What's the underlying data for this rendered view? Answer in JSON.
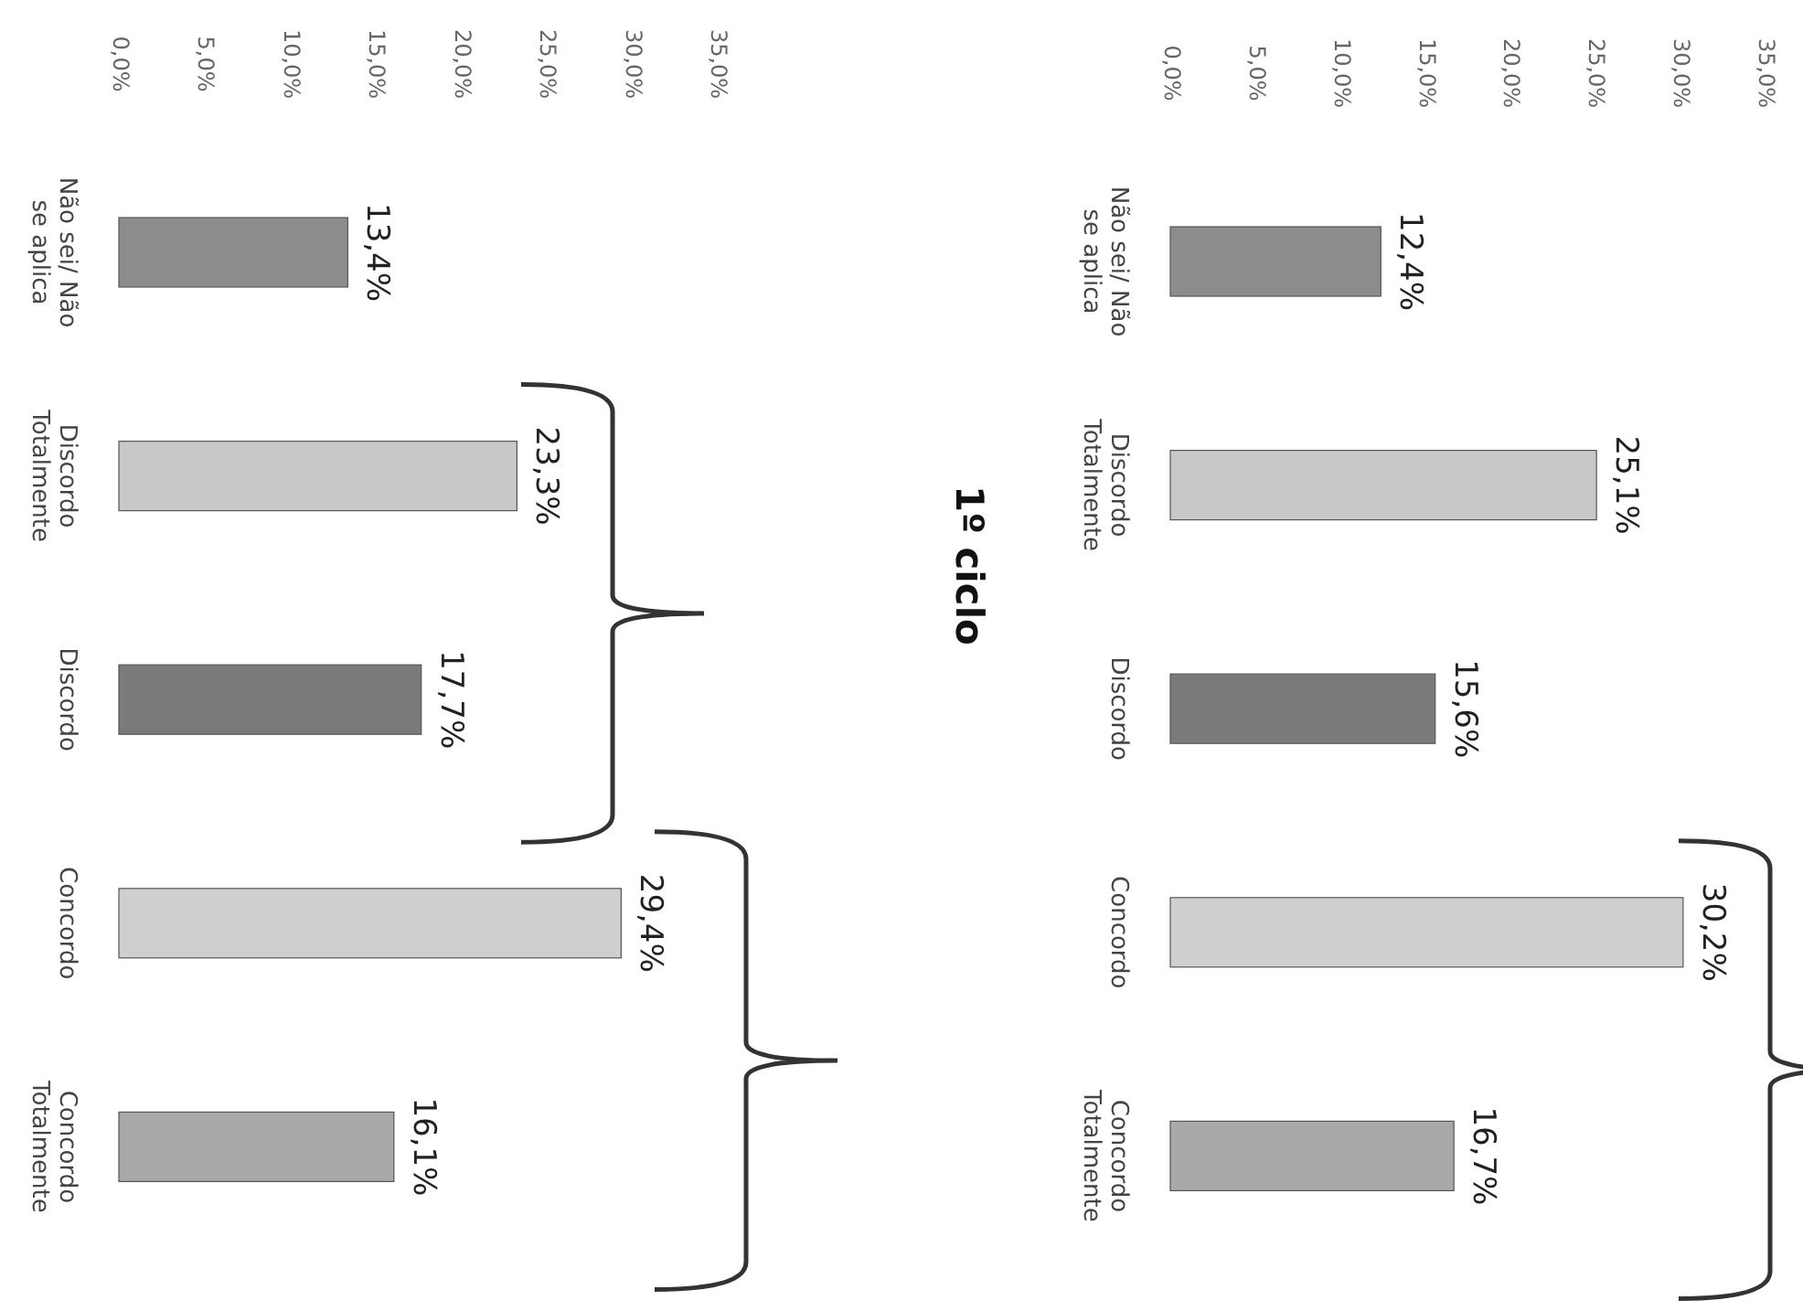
{
  "chart_data": [
    {
      "type": "bar",
      "orientation": "horizontal",
      "title": "1º ciclo",
      "categories": [
        "Não sei/ Não\nse aplica",
        "Discordo\nTotalmente",
        "Discordo",
        "Concordo",
        "Concordo\nTotalmente"
      ],
      "values": [
        12.4,
        25.1,
        15.6,
        30.2,
        16.7
      ],
      "colors": [
        "#8c8c8c",
        "#c8c8c8",
        "#7a7a7a",
        "#cfcfcf",
        "#a9a9a9"
      ],
      "value_labels": [
        "12,4%",
        "25,1%",
        "15,6%",
        "30,2%",
        "16,7%"
      ],
      "xlim": [
        0,
        35
      ],
      "xticks": [
        {
          "value": 0,
          "label": "0,0%"
        },
        {
          "value": 5,
          "label": "5,0%"
        },
        {
          "value": 10,
          "label": "10,0%"
        },
        {
          "value": 15,
          "label": "15,0%"
        },
        {
          "value": 20,
          "label": "20,0%"
        },
        {
          "value": 25,
          "label": "25,0%"
        },
        {
          "value": 30,
          "label": "30,0%"
        },
        {
          "value": 35,
          "label": "35,0%"
        }
      ],
      "grid": false
    },
    {
      "type": "bar",
      "orientation": "horizontal",
      "categories": [
        "Não sei/ Não\nse aplica",
        "Discordo\nTotalmente",
        "Discordo",
        "Concordo",
        "Concordo\nTotalmente"
      ],
      "values": [
        13.4,
        23.3,
        17.7,
        29.4,
        16.1
      ],
      "colors": [
        "#8c8c8c",
        "#c8c8c8",
        "#7a7a7a",
        "#cfcfcf",
        "#a9a9a9"
      ],
      "value_labels": [
        "13,4%",
        "23,3%",
        "17,7%",
        "29,4%",
        "16,1%"
      ],
      "xlim": [
        0,
        35
      ],
      "xticks": [
        {
          "value": 0,
          "label": "0,0%"
        },
        {
          "value": 5,
          "label": "5,0%"
        },
        {
          "value": 10,
          "label": "10,0%"
        },
        {
          "value": 15,
          "label": "15,0%"
        },
        {
          "value": 20,
          "label": "20,0%"
        },
        {
          "value": 25,
          "label": "25,0%"
        },
        {
          "value": 30,
          "label": "30,0%"
        },
        {
          "value": 35,
          "label": "35,0%"
        }
      ],
      "grid": false
    }
  ]
}
